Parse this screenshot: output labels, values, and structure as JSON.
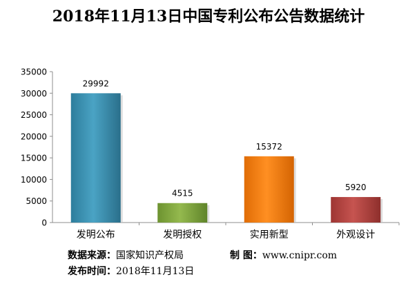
{
  "chart_data": {
    "type": "bar",
    "title": "2018年11月13日中国专利公布公告数据统计",
    "categories": [
      "发明公布",
      "发明授权",
      "实用新型",
      "外观设计"
    ],
    "values": [
      29992,
      4515,
      15372,
      5920
    ],
    "ylim": [
      0,
      35000
    ],
    "yticks": [
      0,
      5000,
      10000,
      15000,
      20000,
      25000,
      30000,
      35000
    ],
    "grid": false,
    "legend": "none",
    "colors": [
      "#3a8fae",
      "#7fa63c",
      "#f07c10",
      "#b4403c"
    ]
  },
  "footer": {
    "source_label": "数据来源：",
    "source_value": "国家知识产权局",
    "maker_label": "制 图：",
    "maker_value": "www.cnipr.com",
    "date_label": "发布时间：",
    "date_value": "2018年11月13日"
  }
}
